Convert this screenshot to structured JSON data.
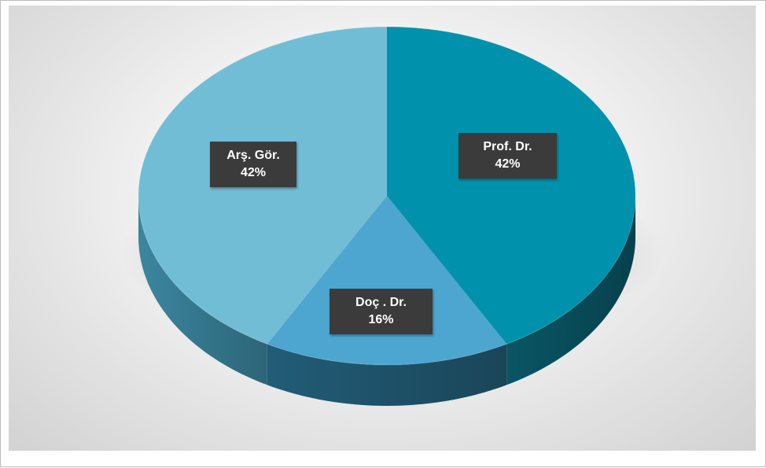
{
  "chart_data": {
    "type": "pie",
    "style": "3d",
    "title": "",
    "slices": [
      {
        "label": "Prof. Dr.",
        "value": 42,
        "display": "42%",
        "color": "#0092AC",
        "side_color": "#0A5868"
      },
      {
        "label": "Doç . Dr.",
        "value": 16,
        "display": "16%",
        "color": "#4DA6D0",
        "side_color": "#235F7A"
      },
      {
        "label": "Arş. Gör.",
        "value": 42,
        "display": "42%",
        "color": "#72BDD6",
        "side_color": "#3D8AA4"
      }
    ],
    "legend": "none",
    "data_labels": "callout boxes inside slices",
    "label_box_color": "#3B3B3B"
  }
}
